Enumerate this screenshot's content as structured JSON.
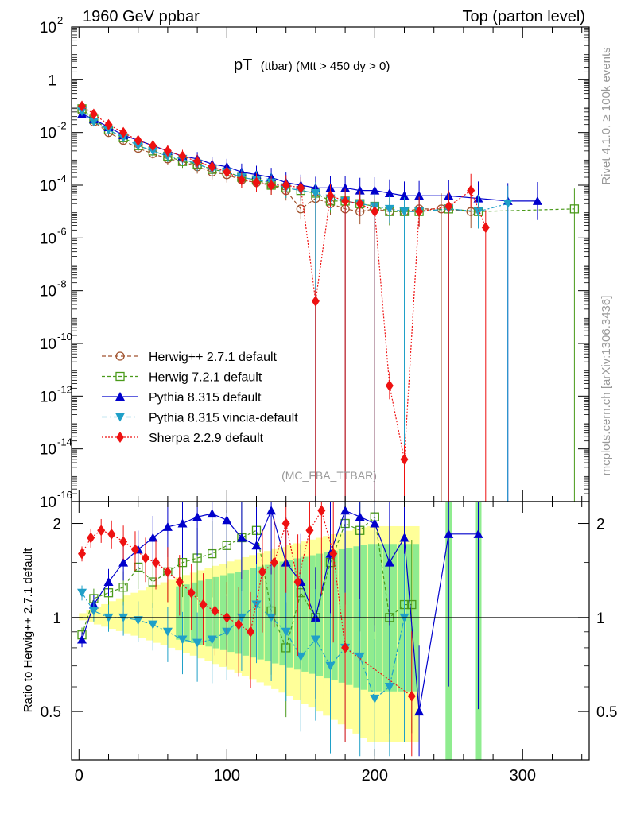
{
  "header": {
    "left": "1960 GeV ppbar",
    "right": "Top (parton level)"
  },
  "side_labels": {
    "rivet": "Rivet 4.1.0, ≥ 100k events",
    "mcplots": "mcplots.cern.ch [arXiv:1306.3436]"
  },
  "chart_data": [
    {
      "panel": "main",
      "type": "line",
      "title": "pT (ttbar) (Mtt > 450 dy > 0)",
      "title_main": "pT",
      "title_sub": "(ttbar) (Mtt > 450 dy > 0)",
      "watermark": "(MC_FBA_TTBAR)",
      "yscale": "log",
      "ylim_exp": [
        -16,
        2
      ],
      "xlim": [
        -5,
        345
      ],
      "y_ticks": [
        {
          "b": "10",
          "e": "2",
          "v": 2
        },
        {
          "b": "1",
          "e": "",
          "v": 0
        },
        {
          "b": "10",
          "e": "-2",
          "v": -2
        },
        {
          "b": "10",
          "e": "-4",
          "v": -4
        },
        {
          "b": "10",
          "e": "-6",
          "v": -6
        },
        {
          "b": "10",
          "e": "-8",
          "v": -8
        },
        {
          "b": "10",
          "e": "-10",
          "v": -10
        },
        {
          "b": "10",
          "e": "-12",
          "v": -12
        },
        {
          "b": "10",
          "e": "-14",
          "v": -14
        },
        {
          "b": "10",
          "e": "-16",
          "v": -16
        }
      ],
      "legend_position": "bottom-left",
      "legend": [
        "Herwig++ 2.7.1 default",
        "Herwig 7.2.1 default",
        "Pythia 8.315 default",
        "Pythia 8.315 vincia-default",
        "Sherpa 2.2.9 default"
      ],
      "series": [
        {
          "name": "Herwig++ 2.7.1 default",
          "color": "#a0522d",
          "marker": "circle-open",
          "dash": "5,3",
          "x": [
            2,
            10,
            20,
            30,
            40,
            50,
            60,
            70,
            80,
            90,
            100,
            110,
            120,
            130,
            140,
            150,
            160,
            170,
            180,
            190,
            200,
            210,
            220,
            230,
            245,
            265
          ],
          "log10y": [
            -1.2,
            -1.6,
            -2.0,
            -2.3,
            -2.6,
            -2.8,
            -3.0,
            -3.1,
            -3.3,
            -3.5,
            -3.6,
            -3.8,
            -3.9,
            -4.0,
            -4.2,
            -4.9,
            -4.5,
            -4.7,
            -4.9,
            -5.0,
            -4.9,
            -5.0,
            -5.0,
            -4.9,
            -4.9,
            -5.0
          ]
        },
        {
          "name": "Herwig 7.2.1 default",
          "color": "#4a9a1a",
          "marker": "square-open",
          "dash": "4,3",
          "x": [
            2,
            10,
            20,
            30,
            40,
            50,
            60,
            70,
            80,
            90,
            100,
            110,
            120,
            130,
            140,
            150,
            160,
            170,
            180,
            190,
            200,
            210,
            220,
            230,
            250,
            270,
            335
          ],
          "log10y": [
            -1.1,
            -1.5,
            -1.9,
            -2.2,
            -2.5,
            -2.7,
            -2.9,
            -3.1,
            -3.2,
            -3.4,
            -3.5,
            -3.7,
            -3.8,
            -4.0,
            -4.1,
            -4.2,
            -4.3,
            -4.6,
            -4.6,
            -4.7,
            -4.8,
            -5.0,
            -5.0,
            -5.0,
            -4.9,
            -5.0,
            -4.9
          ]
        },
        {
          "name": "Pythia 8.315 default",
          "color": "#0000cc",
          "marker": "triangle-up",
          "dash": "",
          "x": [
            2,
            10,
            20,
            30,
            40,
            50,
            60,
            70,
            80,
            90,
            100,
            110,
            120,
            130,
            140,
            150,
            160,
            170,
            180,
            190,
            200,
            210,
            220,
            230,
            250,
            270,
            290,
            310
          ],
          "log10y": [
            -1.3,
            -1.5,
            -1.8,
            -2.1,
            -2.3,
            -2.5,
            -2.7,
            -2.9,
            -3.0,
            -3.2,
            -3.3,
            -3.5,
            -3.6,
            -3.7,
            -3.9,
            -4.0,
            -4.1,
            -4.1,
            -4.1,
            -4.2,
            -4.2,
            -4.3,
            -4.4,
            -4.4,
            -4.4,
            -4.5,
            -4.6,
            -4.6
          ]
        },
        {
          "name": "Pythia 8.315 vincia-default",
          "color": "#1fa0c8",
          "marker": "triangle-down",
          "dash": "7,3,2,3",
          "x": [
            2,
            10,
            20,
            30,
            40,
            50,
            60,
            70,
            80,
            90,
            100,
            110,
            120,
            130,
            140,
            150,
            160,
            170,
            180,
            190,
            200,
            210,
            220,
            230,
            250,
            270,
            290
          ],
          "log10y": [
            -1.2,
            -1.6,
            -1.9,
            -2.2,
            -2.5,
            -2.7,
            -2.9,
            -3.0,
            -3.2,
            -3.4,
            -3.5,
            -3.7,
            -3.8,
            -3.9,
            -4.1,
            -4.2,
            -4.3,
            -4.5,
            -4.6,
            -4.7,
            -4.8,
            -4.9,
            -5.0,
            -5.0,
            -4.9,
            -5.0,
            -4.7
          ]
        },
        {
          "name": "Sherpa 2.2.9 default",
          "color": "#ee1111",
          "marker": "diamond",
          "dash": "2,2",
          "x": [
            2,
            10,
            20,
            30,
            40,
            50,
            60,
            70,
            80,
            90,
            100,
            110,
            120,
            130,
            140,
            150,
            160,
            170,
            180,
            190,
            200,
            210,
            220,
            230,
            250,
            265,
            275
          ],
          "log10y": [
            -1.0,
            -1.3,
            -1.7,
            -2.0,
            -2.3,
            -2.5,
            -2.7,
            -2.9,
            -3.1,
            -3.3,
            -3.5,
            -3.8,
            -3.9,
            -4.0,
            -4.0,
            -4.1,
            -8.4,
            -4.4,
            -4.6,
            -4.7,
            -5.0,
            -11.6,
            -14.4,
            -5.0,
            -4.8,
            -4.2,
            -5.6
          ]
        }
      ]
    },
    {
      "panel": "ratio",
      "type": "line",
      "ylabel": "Ratio to Herwig++ 2.7.1 default",
      "xlabel": "",
      "xlim": [
        -5,
        345
      ],
      "ylim": [
        0.35,
        2.35
      ],
      "x_ticks": [
        0,
        100,
        200,
        300
      ],
      "y_ticks": [
        0.5,
        1,
        2
      ],
      "series": [
        {
          "name": "Herwig 7.2.1 default",
          "color": "#4a9a1a",
          "marker": "square-open",
          "x": [
            2,
            10,
            20,
            30,
            40,
            50,
            60,
            70,
            80,
            90,
            100,
            110,
            120,
            130,
            140,
            150,
            160,
            170,
            180,
            190,
            200,
            210,
            220,
            225
          ],
          "y": [
            0.88,
            1.15,
            1.2,
            1.25,
            1.45,
            1.3,
            1.4,
            1.5,
            1.55,
            1.6,
            1.7,
            1.8,
            1.9,
            1.05,
            0.8,
            1.2,
            1.0,
            1.5,
            2.0,
            1.9,
            2.1,
            1.0,
            1.1,
            1.1
          ]
        },
        {
          "name": "Pythia 8.315 default",
          "color": "#0000cc",
          "marker": "triangle-up",
          "x": [
            2,
            10,
            20,
            30,
            40,
            50,
            60,
            70,
            80,
            90,
            100,
            110,
            120,
            130,
            140,
            150,
            160,
            170,
            180,
            190,
            200,
            210,
            220,
            230,
            250,
            270
          ],
          "y": [
            0.85,
            1.1,
            1.3,
            1.5,
            1.65,
            1.8,
            1.95,
            2.0,
            2.1,
            2.15,
            2.05,
            1.8,
            1.7,
            2.2,
            1.5,
            1.3,
            1.0,
            1.6,
            2.2,
            2.1,
            2.0,
            1.5,
            1.8,
            0.5,
            1.85,
            1.85
          ]
        },
        {
          "name": "Pythia 8.315 vincia-default",
          "color": "#1fa0c8",
          "marker": "triangle-down",
          "x": [
            2,
            10,
            20,
            30,
            40,
            50,
            60,
            70,
            80,
            90,
            100,
            110,
            120,
            130,
            140,
            150,
            160,
            170,
            180,
            190,
            200,
            210,
            220
          ],
          "y": [
            1.2,
            1.05,
            1.0,
            1.0,
            0.98,
            0.95,
            0.9,
            0.85,
            0.83,
            0.85,
            0.9,
            1.0,
            1.1,
            1.0,
            0.9,
            0.75,
            0.85,
            0.7,
            0.8,
            0.75,
            0.55,
            0.6,
            1.0
          ]
        },
        {
          "name": "Sherpa 2.2.9 default",
          "color": "#ee1111",
          "marker": "diamond",
          "x": [
            2,
            8,
            15,
            22,
            30,
            38,
            45,
            52,
            60,
            68,
            76,
            84,
            92,
            100,
            108,
            116,
            124,
            132,
            140,
            148,
            156,
            164,
            172,
            180,
            225
          ],
          "y": [
            1.6,
            1.8,
            1.9,
            1.85,
            1.75,
            1.65,
            1.55,
            1.5,
            1.4,
            1.3,
            1.2,
            1.1,
            1.05,
            1.0,
            0.95,
            0.9,
            1.4,
            1.5,
            2.0,
            1.3,
            1.9,
            2.2,
            1.6,
            0.8,
            0.56
          ]
        }
      ]
    }
  ]
}
